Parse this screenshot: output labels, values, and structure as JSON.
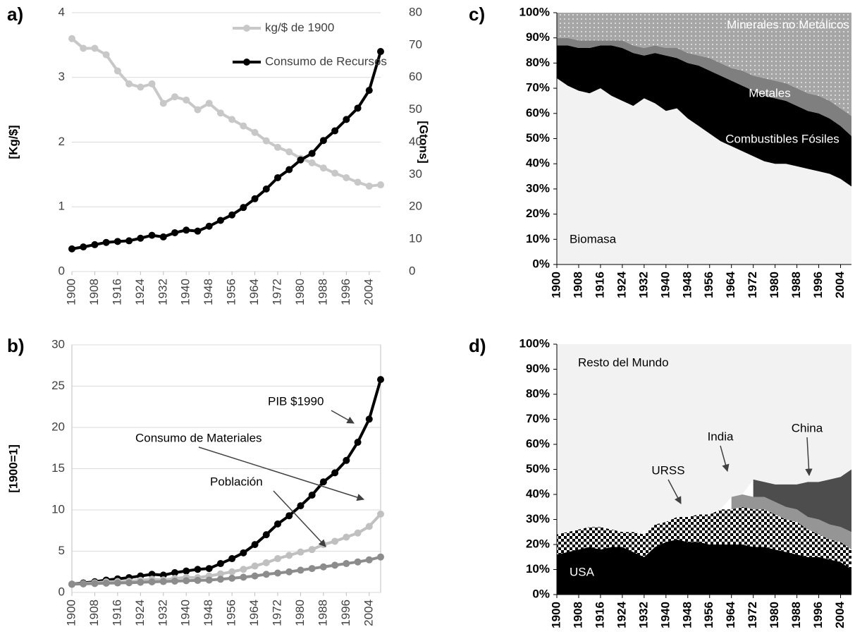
{
  "chart_data": [
    {
      "type": "line",
      "label": "a)",
      "ylabel": "[Kg/$]",
      "y2label": "[Gtons]",
      "x": [
        1900,
        1904,
        1908,
        1912,
        1916,
        1920,
        1924,
        1928,
        1932,
        1936,
        1940,
        1944,
        1948,
        1952,
        1956,
        1960,
        1964,
        1968,
        1972,
        1976,
        1980,
        1984,
        1988,
        1992,
        1996,
        2000,
        2004,
        2008
      ],
      "xlim": [
        1900,
        2008
      ],
      "xticks": [
        1900,
        1908,
        1916,
        1924,
        1932,
        1940,
        1948,
        1956,
        1964,
        1972,
        1980,
        1988,
        1996,
        2004
      ],
      "ylim": [
        0,
        4
      ],
      "yticks": [
        0,
        1,
        2,
        3,
        4
      ],
      "y2lim": [
        0,
        80
      ],
      "y2ticks": [
        0,
        10,
        20,
        30,
        40,
        50,
        60,
        70,
        80
      ],
      "grid": true,
      "legend": "top-right",
      "series": [
        {
          "name": "kg/$ de 1900",
          "color": "#c8c8c8",
          "values": [
            3.6,
            3.45,
            3.45,
            3.35,
            3.1,
            2.9,
            2.85,
            2.9,
            2.6,
            2.7,
            2.65,
            2.5,
            2.6,
            2.45,
            2.35,
            2.25,
            2.15,
            2.02,
            1.92,
            1.85,
            1.75,
            1.68,
            1.6,
            1.52,
            1.45,
            1.38,
            1.32,
            1.34
          ]
        },
        {
          "name": "Consumo de Recursos",
          "color": "#000000",
          "axis": "y2",
          "values": [
            7,
            7.6,
            8.3,
            9,
            9.3,
            9.5,
            10.3,
            11.2,
            10.7,
            12,
            12.8,
            12.5,
            14,
            15.8,
            17.5,
            19.8,
            22.5,
            25.5,
            29,
            31.5,
            34.5,
            36.5,
            40.5,
            43.5,
            47,
            50.5,
            56,
            68
          ]
        }
      ]
    },
    {
      "type": "line",
      "label": "b)",
      "ylabel": "[1900=1]",
      "x": [
        1900,
        1904,
        1908,
        1912,
        1916,
        1920,
        1924,
        1928,
        1932,
        1936,
        1940,
        1944,
        1948,
        1952,
        1956,
        1960,
        1964,
        1968,
        1972,
        1976,
        1980,
        1984,
        1988,
        1992,
        1996,
        2000,
        2004,
        2008
      ],
      "xlim": [
        1900,
        2008
      ],
      "xticks": [
        1900,
        1908,
        1916,
        1924,
        1932,
        1940,
        1948,
        1956,
        1964,
        1972,
        1980,
        1988,
        1996,
        2004
      ],
      "ylim": [
        0,
        30
      ],
      "yticks": [
        0,
        5,
        10,
        15,
        20,
        25,
        30
      ],
      "grid": true,
      "series": [
        {
          "name": "PIB $1990",
          "color": "#000000",
          "values": [
            1,
            1.15,
            1.3,
            1.5,
            1.65,
            1.8,
            2,
            2.2,
            2.1,
            2.4,
            2.6,
            2.8,
            2.9,
            3.5,
            4.1,
            4.8,
            5.8,
            7,
            8.3,
            9.3,
            10.5,
            11.8,
            13.4,
            14.5,
            16,
            18.2,
            21,
            25.8
          ]
        },
        {
          "name": "Consumo de Materiales",
          "color": "#c0c0c0",
          "values": [
            1,
            1.08,
            1.18,
            1.28,
            1.33,
            1.35,
            1.47,
            1.6,
            1.53,
            1.7,
            1.83,
            1.8,
            2,
            2.25,
            2.5,
            2.8,
            3.2,
            3.6,
            4.1,
            4.5,
            4.9,
            5.2,
            5.8,
            6.2,
            6.7,
            7.2,
            8,
            9.5
          ]
        },
        {
          "name": "Población",
          "color": "#8c8c8c",
          "values": [
            1,
            1.04,
            1.08,
            1.12,
            1.15,
            1.18,
            1.23,
            1.28,
            1.32,
            1.37,
            1.42,
            1.46,
            1.5,
            1.6,
            1.72,
            1.85,
            2,
            2.2,
            2.35,
            2.5,
            2.7,
            2.9,
            3.1,
            3.3,
            3.5,
            3.7,
            3.95,
            4.3
          ]
        }
      ]
    },
    {
      "type": "area",
      "label": "c)",
      "stacked": true,
      "x": [
        1900,
        1904,
        1908,
        1912,
        1916,
        1920,
        1924,
        1928,
        1932,
        1936,
        1940,
        1944,
        1948,
        1952,
        1956,
        1960,
        1964,
        1968,
        1972,
        1976,
        1980,
        1984,
        1988,
        1992,
        1996,
        2000,
        2004,
        2008
      ],
      "xlim": [
        1900,
        2008
      ],
      "xticks": [
        1900,
        1908,
        1916,
        1924,
        1932,
        1940,
        1948,
        1956,
        1964,
        1972,
        1980,
        1988,
        1996,
        2004
      ],
      "ylim": [
        0,
        100
      ],
      "yticks": [
        {
          "value": 0,
          "label": "0%"
        },
        {
          "value": 10,
          "label": "10%"
        },
        {
          "value": 20,
          "label": "20%"
        },
        {
          "value": 30,
          "label": "30%"
        },
        {
          "value": 40,
          "label": "40%"
        },
        {
          "value": 50,
          "label": "50%"
        },
        {
          "value": 60,
          "label": "60%"
        },
        {
          "value": 70,
          "label": "70%"
        },
        {
          "value": 80,
          "label": "80%"
        },
        {
          "value": 90,
          "label": "90%"
        },
        {
          "value": 100,
          "label": "100%"
        }
      ],
      "series": [
        {
          "name": "Biomasa",
          "color": "#f2f2f2",
          "values": [
            74,
            71,
            69,
            68,
            70,
            67,
            65,
            63,
            66,
            64,
            61,
            62,
            58,
            55,
            52,
            49,
            47,
            45,
            43,
            41,
            40,
            40,
            39,
            38,
            37,
            36,
            34,
            31
          ]
        },
        {
          "name": "Combustibles Fósiles",
          "color": "#000000",
          "values": [
            13,
            16,
            17,
            18,
            17,
            20,
            21,
            21,
            17,
            20,
            22,
            20,
            22,
            24,
            25,
            26,
            26,
            26,
            26,
            26,
            26,
            25,
            24,
            23,
            23,
            22,
            21,
            20
          ]
        },
        {
          "name": "Metales",
          "color": "#7f7f7f",
          "values": [
            3,
            3,
            3,
            3,
            2,
            2,
            3,
            3,
            3,
            3,
            3,
            4,
            4,
            4,
            5,
            5,
            5,
            6,
            6,
            7,
            7,
            7,
            7,
            7,
            7,
            7,
            7,
            8
          ]
        },
        {
          "name": "Minerales no Metálicos",
          "color": "#a6a6a6",
          "pattern": "dots",
          "values": [
            10,
            10,
            11,
            11,
            11,
            11,
            11,
            13,
            14,
            13,
            14,
            14,
            16,
            17,
            18,
            20,
            22,
            23,
            25,
            26,
            27,
            28,
            30,
            32,
            33,
            35,
            38,
            41
          ]
        }
      ]
    },
    {
      "type": "area",
      "label": "d)",
      "stacked": true,
      "x": [
        1900,
        1904,
        1908,
        1912,
        1916,
        1920,
        1924,
        1928,
        1932,
        1936,
        1940,
        1944,
        1948,
        1952,
        1956,
        1960,
        1964,
        1968,
        1972,
        1976,
        1980,
        1984,
        1988,
        1992,
        1996,
        2000,
        2004,
        2008
      ],
      "xlim": [
        1900,
        2008
      ],
      "xticks": [
        1900,
        1908,
        1916,
        1924,
        1932,
        1940,
        1948,
        1956,
        1964,
        1972,
        1980,
        1988,
        1996,
        2004
      ],
      "ylim": [
        0,
        100
      ],
      "yticks": [
        {
          "value": 0,
          "label": "0%"
        },
        {
          "value": 10,
          "label": "10%"
        },
        {
          "value": 20,
          "label": "20%"
        },
        {
          "value": 30,
          "label": "30%"
        },
        {
          "value": 40,
          "label": "40%"
        },
        {
          "value": 50,
          "label": "50%"
        },
        {
          "value": 60,
          "label": "60%"
        },
        {
          "value": 70,
          "label": "70%"
        },
        {
          "value": 80,
          "label": "80%"
        },
        {
          "value": 90,
          "label": "90%"
        },
        {
          "value": 100,
          "label": "100%"
        }
      ],
      "series": [
        {
          "name": "USA",
          "color": "#000000",
          "values": [
            16,
            17,
            18,
            19,
            18,
            19,
            19,
            17,
            15,
            19,
            21,
            22,
            21,
            21,
            20,
            20,
            20,
            20,
            19,
            19,
            18,
            17,
            16,
            15,
            15,
            14,
            13,
            10
          ]
        },
        {
          "name": "URSS",
          "color": "#000000",
          "pattern": "checker",
          "values": [
            8,
            8,
            8,
            8,
            9,
            7,
            6,
            8,
            9,
            9,
            8,
            9,
            10,
            11,
            12,
            14,
            14,
            15,
            15,
            15,
            14,
            13,
            13,
            11,
            9,
            8,
            8,
            8
          ]
        },
        {
          "name": "India",
          "color": "#959595",
          "values": [
            null,
            null,
            null,
            null,
            null,
            null,
            null,
            null,
            null,
            null,
            null,
            null,
            null,
            null,
            null,
            null,
            5,
            5,
            5,
            5,
            5,
            5,
            5,
            5,
            6,
            6,
            6,
            7
          ]
        },
        {
          "name": "China",
          "color": "#4d4d4d",
          "values": [
            null,
            null,
            null,
            null,
            null,
            null,
            null,
            null,
            null,
            null,
            null,
            null,
            null,
            null,
            null,
            null,
            null,
            null,
            7,
            6,
            7,
            9,
            10,
            14,
            15,
            18,
            20,
            25
          ]
        },
        {
          "name": "Resto del Mundo",
          "color": "#f2f2f2",
          "values": [
            76,
            75,
            74,
            73,
            73,
            74,
            75,
            75,
            76,
            72,
            71,
            69,
            69,
            68,
            68,
            66,
            61,
            60,
            54,
            55,
            56,
            56,
            56,
            55,
            55,
            54,
            53,
            50
          ]
        }
      ]
    }
  ]
}
